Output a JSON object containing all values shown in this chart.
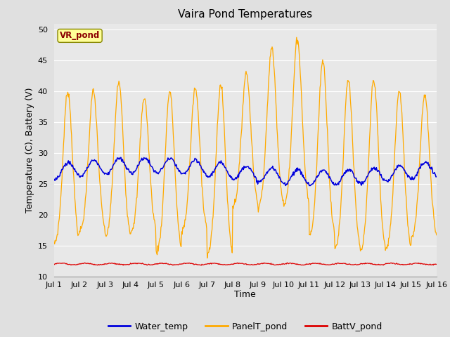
{
  "title": "Vaira Pond Temperatures",
  "xlabel": "Time",
  "ylabel": "Temperature (C), Battery (V)",
  "station_label": "VR_pond",
  "xlim_days": [
    1,
    16
  ],
  "ylim": [
    10,
    51
  ],
  "yticks": [
    10,
    15,
    20,
    25,
    30,
    35,
    40,
    45,
    50
  ],
  "xtick_labels": [
    "Jul 1",
    "Jul 2",
    "Jul 3",
    "Jul 4",
    "Jul 5",
    "Jul 6",
    "Jul 7",
    "Jul 8",
    "Jul 9",
    "Jul 10",
    "Jul 11",
    "Jul 12",
    "Jul 13",
    "Jul 14",
    "Jul 15",
    "Jul 16"
  ],
  "water_temp_color": "#0000dd",
  "panel_temp_color": "#ffaa00",
  "batt_color": "#dd0000",
  "legend_labels": [
    "Water_temp",
    "PanelT_pond",
    "BattV_pond"
  ],
  "bg_color": "#e0e0e0",
  "plot_bg_color": "#e8e8e8",
  "grid_color": "#ffffff",
  "title_fontsize": 11,
  "axis_fontsize": 9,
  "tick_fontsize": 8
}
